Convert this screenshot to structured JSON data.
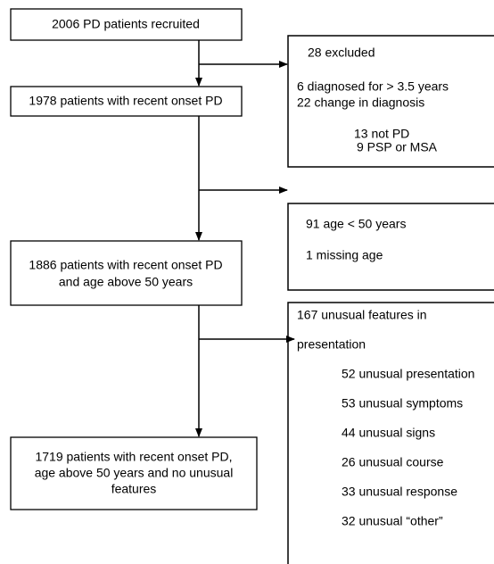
{
  "nodes": [
    {
      "lines": [
        "2006 PD patients recruited"
      ]
    },
    {
      "lines": [
        "1978 patients with recent onset PD"
      ]
    },
    {
      "lines": [
        "1886 patients with recent onset PD",
        "and age above 50 years"
      ]
    },
    {
      "lines": [
        "1719 patients with recent onset PD,",
        "age above 50 years and no unusual",
        "features"
      ]
    }
  ],
  "exclusions": [
    {
      "lines": [
        "28 excluded",
        "6 diagnosed for > 3.5 years",
        "22 change in diagnosis",
        "13 not PD",
        "9 PSP or MSA"
      ]
    },
    {
      "lines": [
        "91 age < 50 years",
        "1 missing age"
      ]
    },
    {
      "lines": [
        "167 unusual features in",
        "presentation",
        "52 unusual presentation",
        "53 unusual symptoms",
        "44 unusual signs",
        "26 unusual course",
        "33 unusual response",
        "32 unusual “other”"
      ]
    }
  ]
}
